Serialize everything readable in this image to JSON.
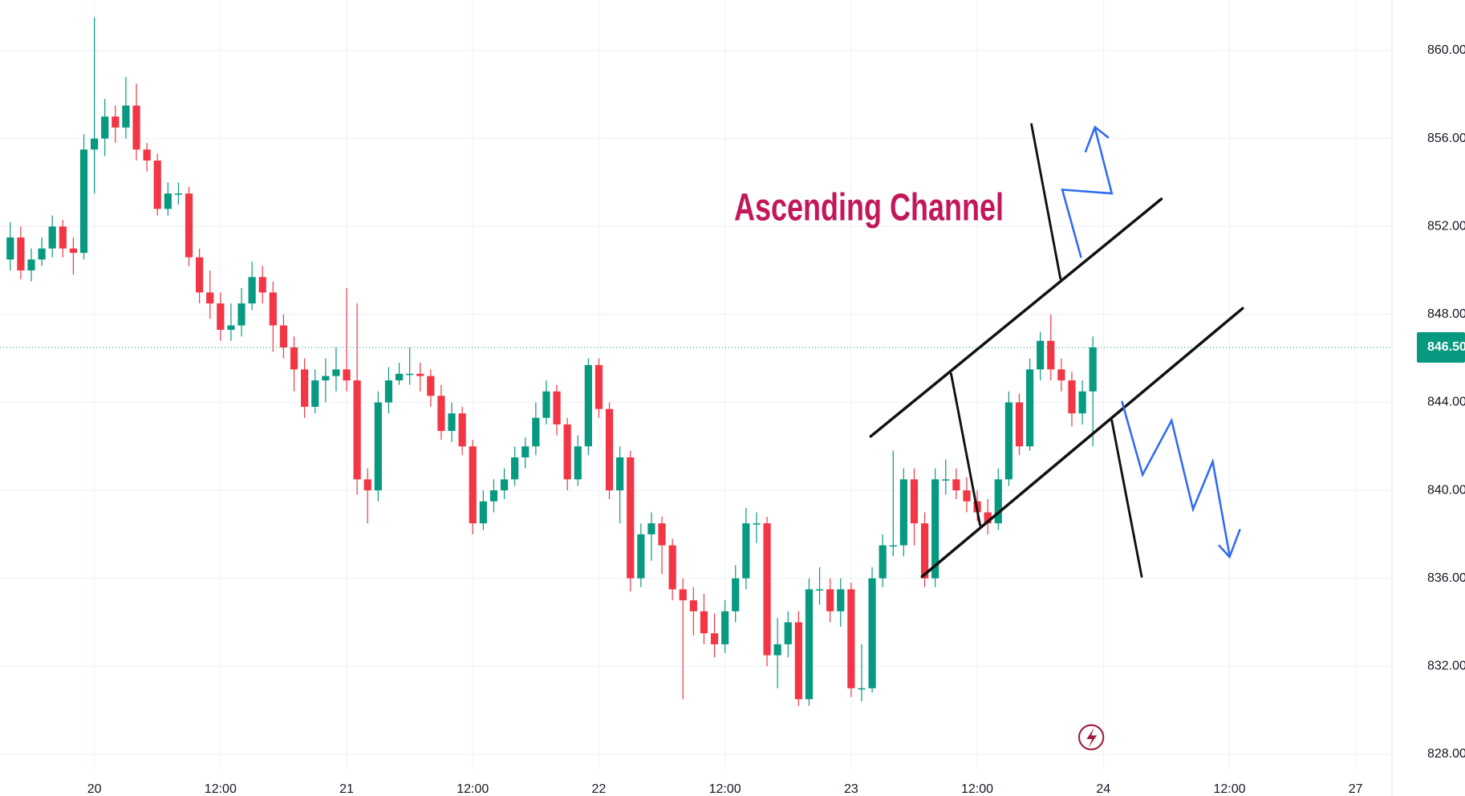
{
  "chart_data": {
    "type": "candlestick",
    "annotation": "Ascending Channel",
    "up_color": "#089981",
    "down_color": "#f23645",
    "grid": true,
    "categories": [
      null,
      null,
      null,
      null,
      null,
      null,
      null,
      null,
      "20",
      null,
      null,
      null,
      null,
      null,
      null,
      null,
      null,
      null,
      null,
      null,
      "12:00",
      null,
      null,
      null,
      null,
      null,
      null,
      null,
      null,
      null,
      null,
      null,
      "21",
      null,
      null,
      null,
      null,
      null,
      null,
      null,
      null,
      null,
      null,
      null,
      "12:00",
      null,
      null,
      null,
      null,
      null,
      null,
      null,
      null,
      null,
      null,
      null,
      "22",
      null,
      null,
      null,
      null,
      null,
      null,
      null,
      null,
      null,
      null,
      null,
      "12:00",
      null,
      null,
      null,
      null,
      null,
      null,
      null,
      null,
      null,
      null,
      null,
      "23",
      null,
      null,
      null,
      null,
      null,
      null,
      null,
      null,
      null,
      null,
      null,
      "12:00",
      null,
      null,
      null,
      null,
      null,
      null,
      null,
      null,
      null,
      null,
      null,
      "24",
      null,
      null,
      null,
      null,
      null,
      null,
      null,
      null,
      null,
      null,
      null,
      "12:00",
      null,
      null,
      null,
      null,
      null,
      null,
      null,
      null,
      null,
      null,
      null,
      "27"
    ],
    "ohlc": [
      [
        850.5,
        852.2,
        850,
        851.5
      ],
      [
        851.5,
        852,
        849.6,
        850
      ],
      [
        850,
        851,
        849.5,
        850.5
      ],
      [
        850.5,
        851.5,
        850.2,
        851
      ],
      [
        851,
        852.5,
        850.6,
        852
      ],
      [
        852,
        852.3,
        850.6,
        851
      ],
      [
        851,
        851.5,
        849.8,
        850.8
      ],
      [
        850.8,
        856.2,
        850.5,
        855.5
      ],
      [
        855.5,
        861.5,
        853.5,
        856
      ],
      [
        856,
        857.8,
        855.2,
        857
      ],
      [
        857,
        857.5,
        855.8,
        856.5
      ],
      [
        856.5,
        858.8,
        856,
        857.5
      ],
      [
        857.5,
        858.5,
        855,
        855.5
      ],
      [
        855.5,
        855.8,
        854.5,
        855
      ],
      [
        855,
        855.3,
        852.5,
        852.8
      ],
      [
        852.8,
        854,
        852.5,
        853.5
      ],
      [
        853.5,
        854,
        853,
        853.5
      ],
      [
        853.5,
        853.8,
        850.2,
        850.6
      ],
      [
        850.6,
        851,
        848.5,
        849
      ],
      [
        849,
        850,
        847.8,
        848.5
      ],
      [
        848.5,
        849,
        846.8,
        847.3
      ],
      [
        847.3,
        848.5,
        846.8,
        847.5
      ],
      [
        847.5,
        849.2,
        847,
        848.5
      ],
      [
        848.5,
        850.4,
        848.2,
        849.7
      ],
      [
        849.7,
        850.2,
        848.5,
        849
      ],
      [
        849,
        849.5,
        846.3,
        847.5
      ],
      [
        847.5,
        848,
        846,
        846.5
      ],
      [
        846.5,
        847,
        844.5,
        845.5
      ],
      [
        845.5,
        846,
        843.3,
        843.8
      ],
      [
        843.8,
        845.5,
        843.5,
        845
      ],
      [
        845,
        846,
        844,
        845.2
      ],
      [
        845.2,
        846.5,
        844.5,
        845.5
      ],
      [
        845.5,
        849.2,
        844.5,
        845
      ],
      [
        845,
        848.5,
        839.8,
        840.5
      ],
      [
        840.5,
        841,
        838.5,
        840
      ],
      [
        840,
        844.5,
        839.5,
        844
      ],
      [
        844,
        845.6,
        843.5,
        845
      ],
      [
        845,
        845.8,
        844.8,
        845.3
      ],
      [
        845.3,
        846.5,
        844.8,
        845.3
      ],
      [
        845.3,
        845.8,
        844.5,
        845.2
      ],
      [
        845.2,
        845.5,
        843.8,
        844.3
      ],
      [
        844.3,
        844.8,
        842.3,
        842.7
      ],
      [
        842.7,
        844,
        842.2,
        843.5
      ],
      [
        843.5,
        843.8,
        841.6,
        842
      ],
      [
        842,
        842.3,
        838,
        838.5
      ],
      [
        838.5,
        840,
        838.2,
        839.5
      ],
      [
        839.5,
        840.5,
        839,
        840
      ],
      [
        840,
        841,
        839.6,
        840.5
      ],
      [
        840.5,
        842,
        840.2,
        841.5
      ],
      [
        841.5,
        842.4,
        841,
        842
      ],
      [
        842,
        844,
        841.6,
        843.3
      ],
      [
        843.3,
        845,
        843,
        844.5
      ],
      [
        844.5,
        844.8,
        842.5,
        843
      ],
      [
        843,
        843.3,
        840,
        840.5
      ],
      [
        840.5,
        842.5,
        840.2,
        842
      ],
      [
        842,
        846,
        841.6,
        845.7
      ],
      [
        845.7,
        846,
        843.3,
        843.7
      ],
      [
        843.7,
        844,
        839.6,
        840
      ],
      [
        840,
        842,
        838.5,
        841.5
      ],
      [
        841.5,
        841.8,
        835.4,
        836
      ],
      [
        836,
        838.5,
        835.6,
        838
      ],
      [
        838,
        839,
        836.8,
        838.5
      ],
      [
        838.5,
        838.8,
        836.2,
        837.5
      ],
      [
        837.5,
        837.8,
        835,
        835.5
      ],
      [
        835.5,
        836,
        830.5,
        835
      ],
      [
        835,
        835.6,
        833.4,
        834.5
      ],
      [
        834.5,
        835.3,
        833,
        833.5
      ],
      [
        833.5,
        834.4,
        832.4,
        833
      ],
      [
        833,
        835,
        832.6,
        834.5
      ],
      [
        834.5,
        836.6,
        834,
        836
      ],
      [
        836,
        839.2,
        835.5,
        838.5
      ],
      [
        838.5,
        839,
        837.6,
        838.5
      ],
      [
        838.5,
        838.8,
        832,
        832.5
      ],
      [
        832.5,
        834.2,
        831,
        833
      ],
      [
        833,
        834.5,
        832.4,
        834
      ],
      [
        834,
        834.5,
        830.2,
        830.5
      ],
      [
        830.5,
        836,
        830.2,
        835.5
      ],
      [
        835.5,
        836.5,
        834.8,
        835.5
      ],
      [
        835.5,
        836,
        834,
        834.5
      ],
      [
        834.5,
        836,
        833.8,
        835.5
      ],
      [
        835.5,
        835.8,
        830.6,
        831
      ],
      [
        831,
        833,
        830.4,
        831
      ],
      [
        831,
        836.5,
        830.8,
        836
      ],
      [
        836,
        838,
        835.6,
        837.5
      ],
      [
        837.5,
        841.8,
        837,
        837.5
      ],
      [
        837.5,
        841,
        837,
        840.5
      ],
      [
        840.5,
        841,
        837.5,
        838.5
      ],
      [
        838.5,
        839,
        835.6,
        836
      ],
      [
        836,
        841,
        835.6,
        840.5
      ],
      [
        840.5,
        841.4,
        839.8,
        840.5
      ],
      [
        840.5,
        841,
        839.6,
        840
      ],
      [
        840,
        840.6,
        839,
        839.5
      ],
      [
        839.5,
        840,
        838.6,
        839
      ],
      [
        839,
        839.6,
        838,
        838.5
      ],
      [
        838.5,
        841,
        838.2,
        840.5
      ],
      [
        840.5,
        844.5,
        840.2,
        844
      ],
      [
        844,
        844.4,
        841.6,
        842
      ],
      [
        842,
        846,
        841.8,
        845.5
      ],
      [
        845.5,
        847.2,
        845,
        846.8
      ],
      [
        846.8,
        848,
        845,
        845.5
      ],
      [
        845.5,
        846,
        844.5,
        845
      ],
      [
        845,
        845.4,
        842.9,
        843.5
      ],
      [
        843.5,
        845,
        843,
        844.5
      ],
      [
        844.5,
        847,
        842,
        846.5
      ],
      null,
      null,
      null,
      null,
      null,
      null,
      null,
      null,
      null,
      null,
      null,
      null,
      null,
      null,
      null,
      null,
      null,
      null,
      null,
      null,
      null,
      null,
      null,
      null,
      null
    ],
    "ylim": [
      826.1,
      862.3
    ],
    "yticks": [
      {
        "value": 828,
        "label": "828.00"
      },
      {
        "value": 832,
        "label": "832.00"
      },
      {
        "value": 836,
        "label": "836.00"
      },
      {
        "value": 840,
        "label": "840.00"
      },
      {
        "value": 844,
        "label": "844.00"
      },
      {
        "value": 848,
        "label": "848.00"
      },
      {
        "value": 852,
        "label": "852.00"
      },
      {
        "value": 856,
        "label": "856.00"
      },
      {
        "value": 860,
        "label": "860.00"
      }
    ],
    "last_price": {
      "value": 846.5,
      "label": "846.50"
    }
  }
}
